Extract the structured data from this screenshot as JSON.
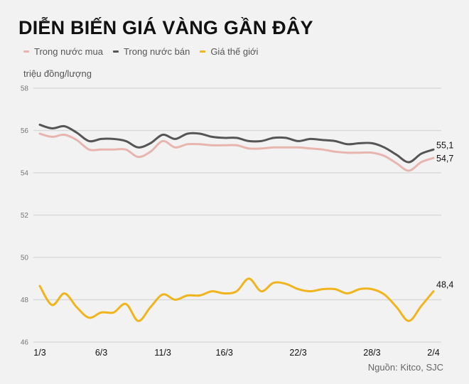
{
  "chart_data": {
    "type": "line",
    "title": "DIỄN BIẾN GIÁ VÀNG GẦN ĐÂY",
    "ylabel": "triệu đồng/lượng",
    "xlabel": "",
    "ylim": [
      46,
      58
    ],
    "yticks": [
      58,
      56,
      54,
      52,
      50,
      48,
      46
    ],
    "x_tick_labels": [
      {
        "day": 0,
        "label": "1/3"
      },
      {
        "day": 5,
        "label": "6/3"
      },
      {
        "day": 10,
        "label": "11/3"
      },
      {
        "day": 15,
        "label": "16/3"
      },
      {
        "day": 21,
        "label": "22/3"
      },
      {
        "day": 27,
        "label": "28/3"
      },
      {
        "day": 32,
        "label": "2/4"
      }
    ],
    "x_range_days": [
      0,
      32
    ],
    "grid": true,
    "legend_position": "top-left",
    "series": [
      {
        "name": "Trong nước mua",
        "color": "#e8b5ae",
        "end_label": "54,7",
        "values": [
          55.85,
          55.7,
          55.8,
          55.55,
          55.1,
          55.1,
          55.1,
          55.1,
          54.75,
          55.0,
          55.5,
          55.2,
          55.35,
          55.35,
          55.3,
          55.3,
          55.3,
          55.15,
          55.15,
          55.2,
          55.2,
          55.2,
          55.15,
          55.1,
          55.0,
          54.95,
          54.95,
          54.95,
          54.8,
          54.45,
          54.1,
          54.5,
          54.7
        ]
      },
      {
        "name": "Trong nước bán",
        "color": "#555555",
        "end_label": "55,1",
        "values": [
          56.27,
          56.1,
          56.2,
          55.9,
          55.5,
          55.6,
          55.6,
          55.5,
          55.2,
          55.4,
          55.8,
          55.6,
          55.85,
          55.85,
          55.7,
          55.65,
          55.65,
          55.5,
          55.5,
          55.65,
          55.65,
          55.5,
          55.6,
          55.55,
          55.5,
          55.35,
          55.4,
          55.4,
          55.2,
          54.85,
          54.5,
          54.9,
          55.1
        ]
      },
      {
        "name": "Giá thế giới",
        "color": "#f0b41c",
        "end_label": "48,4",
        "values": [
          48.65,
          47.75,
          48.3,
          47.65,
          47.15,
          47.4,
          47.4,
          47.8,
          47.0,
          47.65,
          48.25,
          48.0,
          48.2,
          48.2,
          48.4,
          48.3,
          48.4,
          49.0,
          48.4,
          48.8,
          48.75,
          48.5,
          48.4,
          48.5,
          48.5,
          48.3,
          48.5,
          48.5,
          48.25,
          47.65,
          47.0,
          47.7,
          48.4
        ]
      }
    ],
    "source": "Nguồn: Kitco, SJC"
  },
  "legend": [
    {
      "label": "Trong nước mua",
      "color": "#e8b5ae"
    },
    {
      "label": "Trong nước bán",
      "color": "#555555"
    },
    {
      "label": "Giá thế giới",
      "color": "#f0b41c"
    }
  ],
  "colors": {
    "background": "#f2f2f2",
    "grid": "#d9d9d9"
  }
}
